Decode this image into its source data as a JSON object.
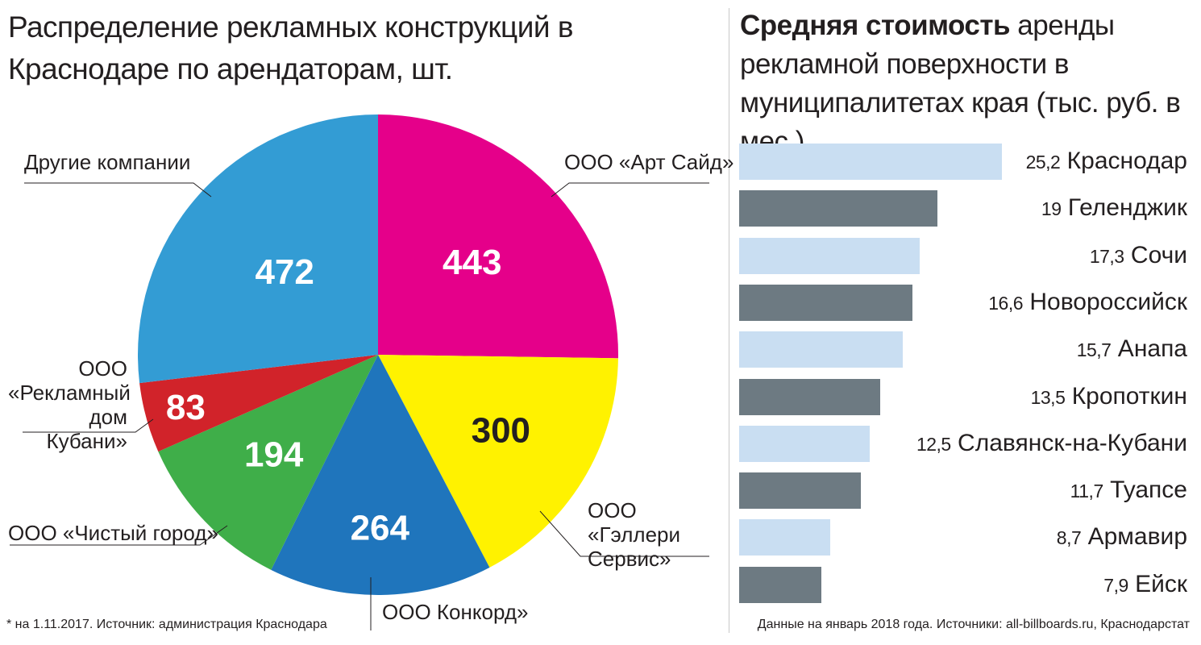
{
  "left_chart": {
    "title": "Распределение рекламных конструкций в Краснодаре по арендаторам, шт.",
    "footnote": "* на 1.11.2017. Источник: администрация Краснодара"
  },
  "right_chart": {
    "title_bold": "Средняя стоимость",
    "title_rest": " аренды рекламной поверхности в муниципалитетах края (тыс. руб. в мес.)",
    "footnote": "Данные на январь 2018 года. Источники: all-billboards.ru, Краснодарстат"
  },
  "chart_data": [
    {
      "type": "pie",
      "title": "Распределение рекламных конструкций в Краснодаре по арендаторам, шт.",
      "slices": [
        {
          "label": "ООО «Арт Сайд»",
          "value": 443,
          "color": "#e5008a",
          "text_color": "#ffffff"
        },
        {
          "label": "ООО «Гэллери Сервис»",
          "value": 300,
          "color": "#fff200",
          "text_color": "#231f20"
        },
        {
          "label": "ООО Конкорд»",
          "value": 264,
          "color": "#1f75bc",
          "text_color": "#ffffff"
        },
        {
          "label": "ООО «Чистый город»",
          "value": 194,
          "color": "#3fae49",
          "text_color": "#ffffff"
        },
        {
          "label": "ООО «Рекламный дом Кубани»",
          "value": 83,
          "color": "#d1232a",
          "text_color": "#ffffff"
        },
        {
          "label": "Другие компании",
          "value": 472,
          "color": "#339cd4",
          "text_color": "#ffffff"
        }
      ]
    },
    {
      "type": "bar",
      "orientation": "horizontal",
      "title": "Средняя стоимость аренды рекламной поверхности в муниципалитетах края (тыс. руб. в мес.)",
      "colors": [
        "#c9def2",
        "#6d7a82"
      ],
      "categories": [
        "Краснодар",
        "Геленджик",
        "Сочи",
        "Новороссийск",
        "Анапа",
        "Кропоткин",
        "Славянск-на-Кубани",
        "Туапсе",
        "Армавир",
        "Ейск"
      ],
      "values": [
        25.2,
        19,
        17.3,
        16.6,
        15.7,
        13.5,
        12.5,
        11.7,
        8.7,
        7.9
      ],
      "value_labels": [
        "25,2",
        "19",
        "17,3",
        "16,6",
        "15,7",
        "13,5",
        "12,5",
        "11,7",
        "8,7",
        "7,9"
      ]
    }
  ]
}
